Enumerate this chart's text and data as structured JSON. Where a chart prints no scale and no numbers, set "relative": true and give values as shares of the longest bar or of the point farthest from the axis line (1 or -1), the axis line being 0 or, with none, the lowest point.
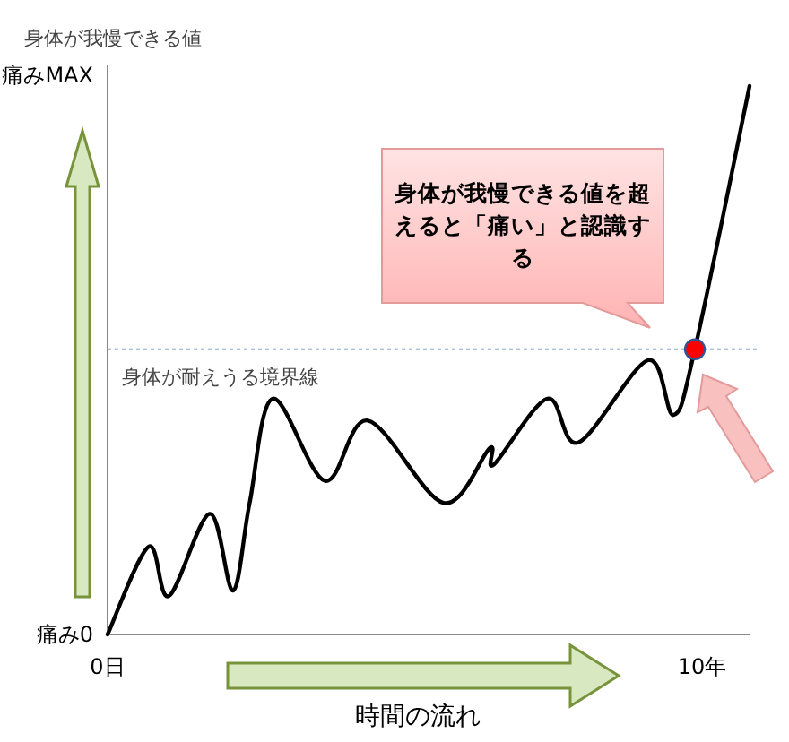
{
  "chart_data": {
    "type": "line",
    "relative": true,
    "ylabel": "身体が我慢できる値",
    "xlabel": "時間の流れ",
    "xlim": [
      0,
      10.8
    ],
    "xticks": [
      {
        "value": 0,
        "label": "0日"
      },
      {
        "value": 10,
        "label": "10年"
      }
    ],
    "grid": false,
    "series": [
      {
        "color": "#000000",
        "marker": "none",
        "x": [
          0,
          0.69,
          1.03,
          1.72,
          2.11,
          2.39,
          2.78,
          3.66,
          4.38,
          5.65,
          6.43,
          6.5,
          7.4,
          7.92,
          9.09,
          9.52,
          9.88,
          10.8
        ],
        "values": [
          0,
          0.16,
          0.07,
          0.22,
          0.08,
          0.24,
          0.43,
          0.28,
          0.39,
          0.24,
          0.34,
          0.31,
          0.43,
          0.35,
          0.5,
          0.4,
          0.52,
          1
        ]
      },
      {
        "type": "scatter",
        "color": "#ff0000",
        "marker": "circle",
        "x": [
          9.88
        ],
        "values": [
          0.52
        ]
      }
    ],
    "ref_lines": [
      {
        "axis": "y",
        "value": 0.52,
        "label": "身体が耐えうる境界線",
        "color": "#8ea9c8",
        "line_style": "dotted"
      }
    ],
    "annotations": [
      "身体が我慢できる値を超えると「痛い」と認識する",
      "痛み0",
      "痛みMAX"
    ]
  }
}
